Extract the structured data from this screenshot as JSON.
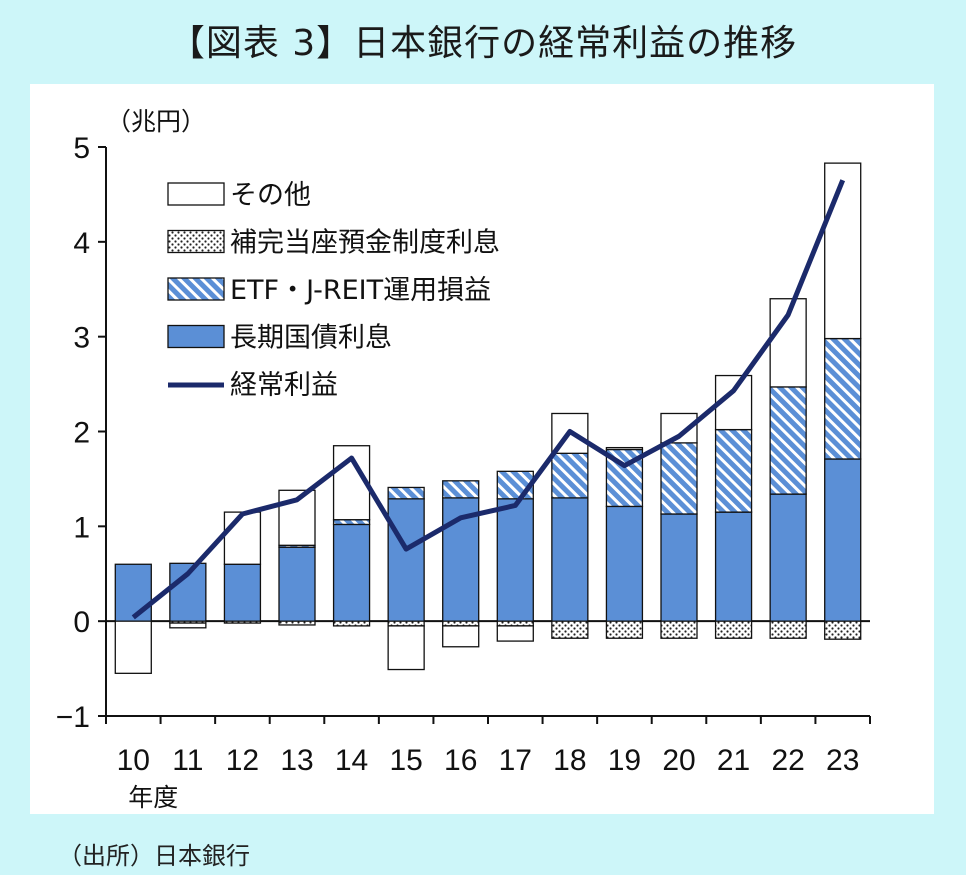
{
  "title": "【図表 3】日本銀行の経常利益の推移",
  "source": "（出所）日本銀行",
  "chart_data": {
    "type": "bar",
    "stacked": true,
    "unit_label": "（兆円）",
    "xlabel": "年度",
    "categories": [
      "10",
      "11",
      "12",
      "13",
      "14",
      "15",
      "16",
      "17",
      "18",
      "19",
      "20",
      "21",
      "22",
      "23"
    ],
    "ylim": [
      -1,
      5
    ],
    "yticks": [
      "−1",
      "0",
      "1",
      "2",
      "3",
      "4",
      "5"
    ],
    "colors": {
      "jgb": "#5b8fd6",
      "etf": "#5b8fd6",
      "complement": "#ffffff",
      "other": "#ffffff",
      "line": "#1b2a6b",
      "stroke": "#111111",
      "background": "#cdf6f9"
    },
    "series": [
      {
        "name": "長期国債利息",
        "key": "jgb",
        "values": [
          0.6,
          0.61,
          0.6,
          0.78,
          1.02,
          1.29,
          1.3,
          1.29,
          1.3,
          1.21,
          1.13,
          1.15,
          1.34,
          1.71
        ]
      },
      {
        "name": "ETF・J-REIT運用損益",
        "key": "etf",
        "values": [
          0,
          0,
          0,
          0.02,
          0.05,
          0.12,
          0.18,
          0.29,
          0.47,
          0.6,
          0.75,
          0.87,
          1.13,
          1.27
        ]
      },
      {
        "name": "補完当座預金制度利息",
        "key": "complement",
        "values": [
          0,
          -0.02,
          -0.02,
          -0.04,
          -0.05,
          -0.05,
          -0.05,
          -0.05,
          -0.18,
          -0.18,
          -0.18,
          -0.18,
          -0.18,
          -0.19
        ]
      },
      {
        "name": "その他",
        "key": "other",
        "values": [
          -0.55,
          -0.05,
          0.55,
          0.58,
          0.78,
          -0.46,
          -0.22,
          -0.16,
          0.42,
          0.02,
          0.31,
          0.57,
          0.93,
          1.85
        ]
      },
      {
        "name": "経常利益",
        "key": "line",
        "type": "line",
        "values": [
          0.04,
          0.5,
          1.13,
          1.28,
          1.72,
          0.76,
          1.09,
          1.22,
          2.0,
          1.64,
          1.95,
          2.43,
          3.23,
          4.65
        ]
      }
    ],
    "legend_order": [
      "other",
      "complement",
      "etf",
      "jgb",
      "line"
    ],
    "legend_position": "top-left"
  }
}
